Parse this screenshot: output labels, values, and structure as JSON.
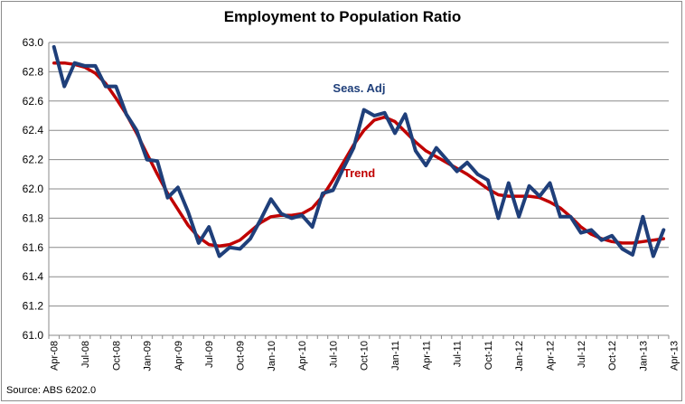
{
  "chart_data": {
    "type": "line",
    "title": "Employment to Population Ratio",
    "source": "Source: ABS 6202.0",
    "ylim": [
      61.0,
      63.0
    ],
    "yticks": [
      "61.0",
      "61.2",
      "61.4",
      "61.6",
      "61.8",
      "62.0",
      "62.2",
      "62.4",
      "62.6",
      "62.8",
      "63.0"
    ],
    "xtick_labels": [
      "Apr-08",
      "Jul-08",
      "Oct-08",
      "Jan-09",
      "Apr-09",
      "Jul-09",
      "Oct-09",
      "Jan-10",
      "Apr-10",
      "Jul-10",
      "Oct-10",
      "Jan-11",
      "Apr-11",
      "Jul-11",
      "Oct-11",
      "Jan-12",
      "Apr-12",
      "Jul-12",
      "Oct-12",
      "Jan-13",
      "Apr-13"
    ],
    "annotations": [
      {
        "text": "Seas. Adj",
        "series": "Seas. Adj"
      },
      {
        "text": "Trend",
        "series": "Trend"
      }
    ],
    "series": [
      {
        "name": "Seas. Adj",
        "color": "#1f3f7a",
        "values": [
          62.97,
          62.7,
          62.86,
          62.84,
          62.84,
          62.7,
          62.7,
          62.51,
          62.4,
          62.2,
          62.19,
          61.94,
          62.01,
          61.84,
          61.63,
          61.74,
          61.54,
          61.6,
          61.59,
          61.66,
          61.79,
          61.93,
          61.83,
          61.8,
          61.82,
          61.74,
          61.97,
          61.99,
          62.14,
          62.28,
          62.54,
          62.5,
          62.52,
          62.38,
          62.51,
          62.26,
          62.16,
          62.28,
          62.2,
          62.12,
          62.18,
          62.1,
          62.06,
          61.8,
          62.04,
          61.81,
          62.02,
          61.95,
          62.04,
          61.81,
          61.81,
          61.7,
          61.72,
          61.65,
          61.68,
          61.59,
          61.55,
          61.81,
          61.54,
          61.72
        ]
      },
      {
        "name": "Trend",
        "color": "#c00000",
        "values": [
          62.86,
          62.86,
          62.85,
          62.83,
          62.79,
          62.72,
          62.62,
          62.51,
          62.38,
          62.24,
          62.1,
          61.97,
          61.86,
          61.75,
          61.67,
          61.62,
          61.61,
          61.62,
          61.65,
          61.71,
          61.77,
          61.81,
          61.82,
          61.82,
          61.83,
          61.87,
          61.95,
          62.06,
          62.18,
          62.3,
          62.4,
          62.47,
          62.49,
          62.46,
          62.39,
          62.32,
          62.26,
          62.22,
          62.18,
          62.14,
          62.1,
          62.05,
          62.0,
          61.96,
          61.95,
          61.95,
          61.95,
          61.94,
          61.91,
          61.87,
          61.81,
          61.74,
          61.69,
          61.66,
          61.64,
          61.63,
          61.63,
          61.64,
          61.65,
          61.66
        ]
      }
    ]
  }
}
